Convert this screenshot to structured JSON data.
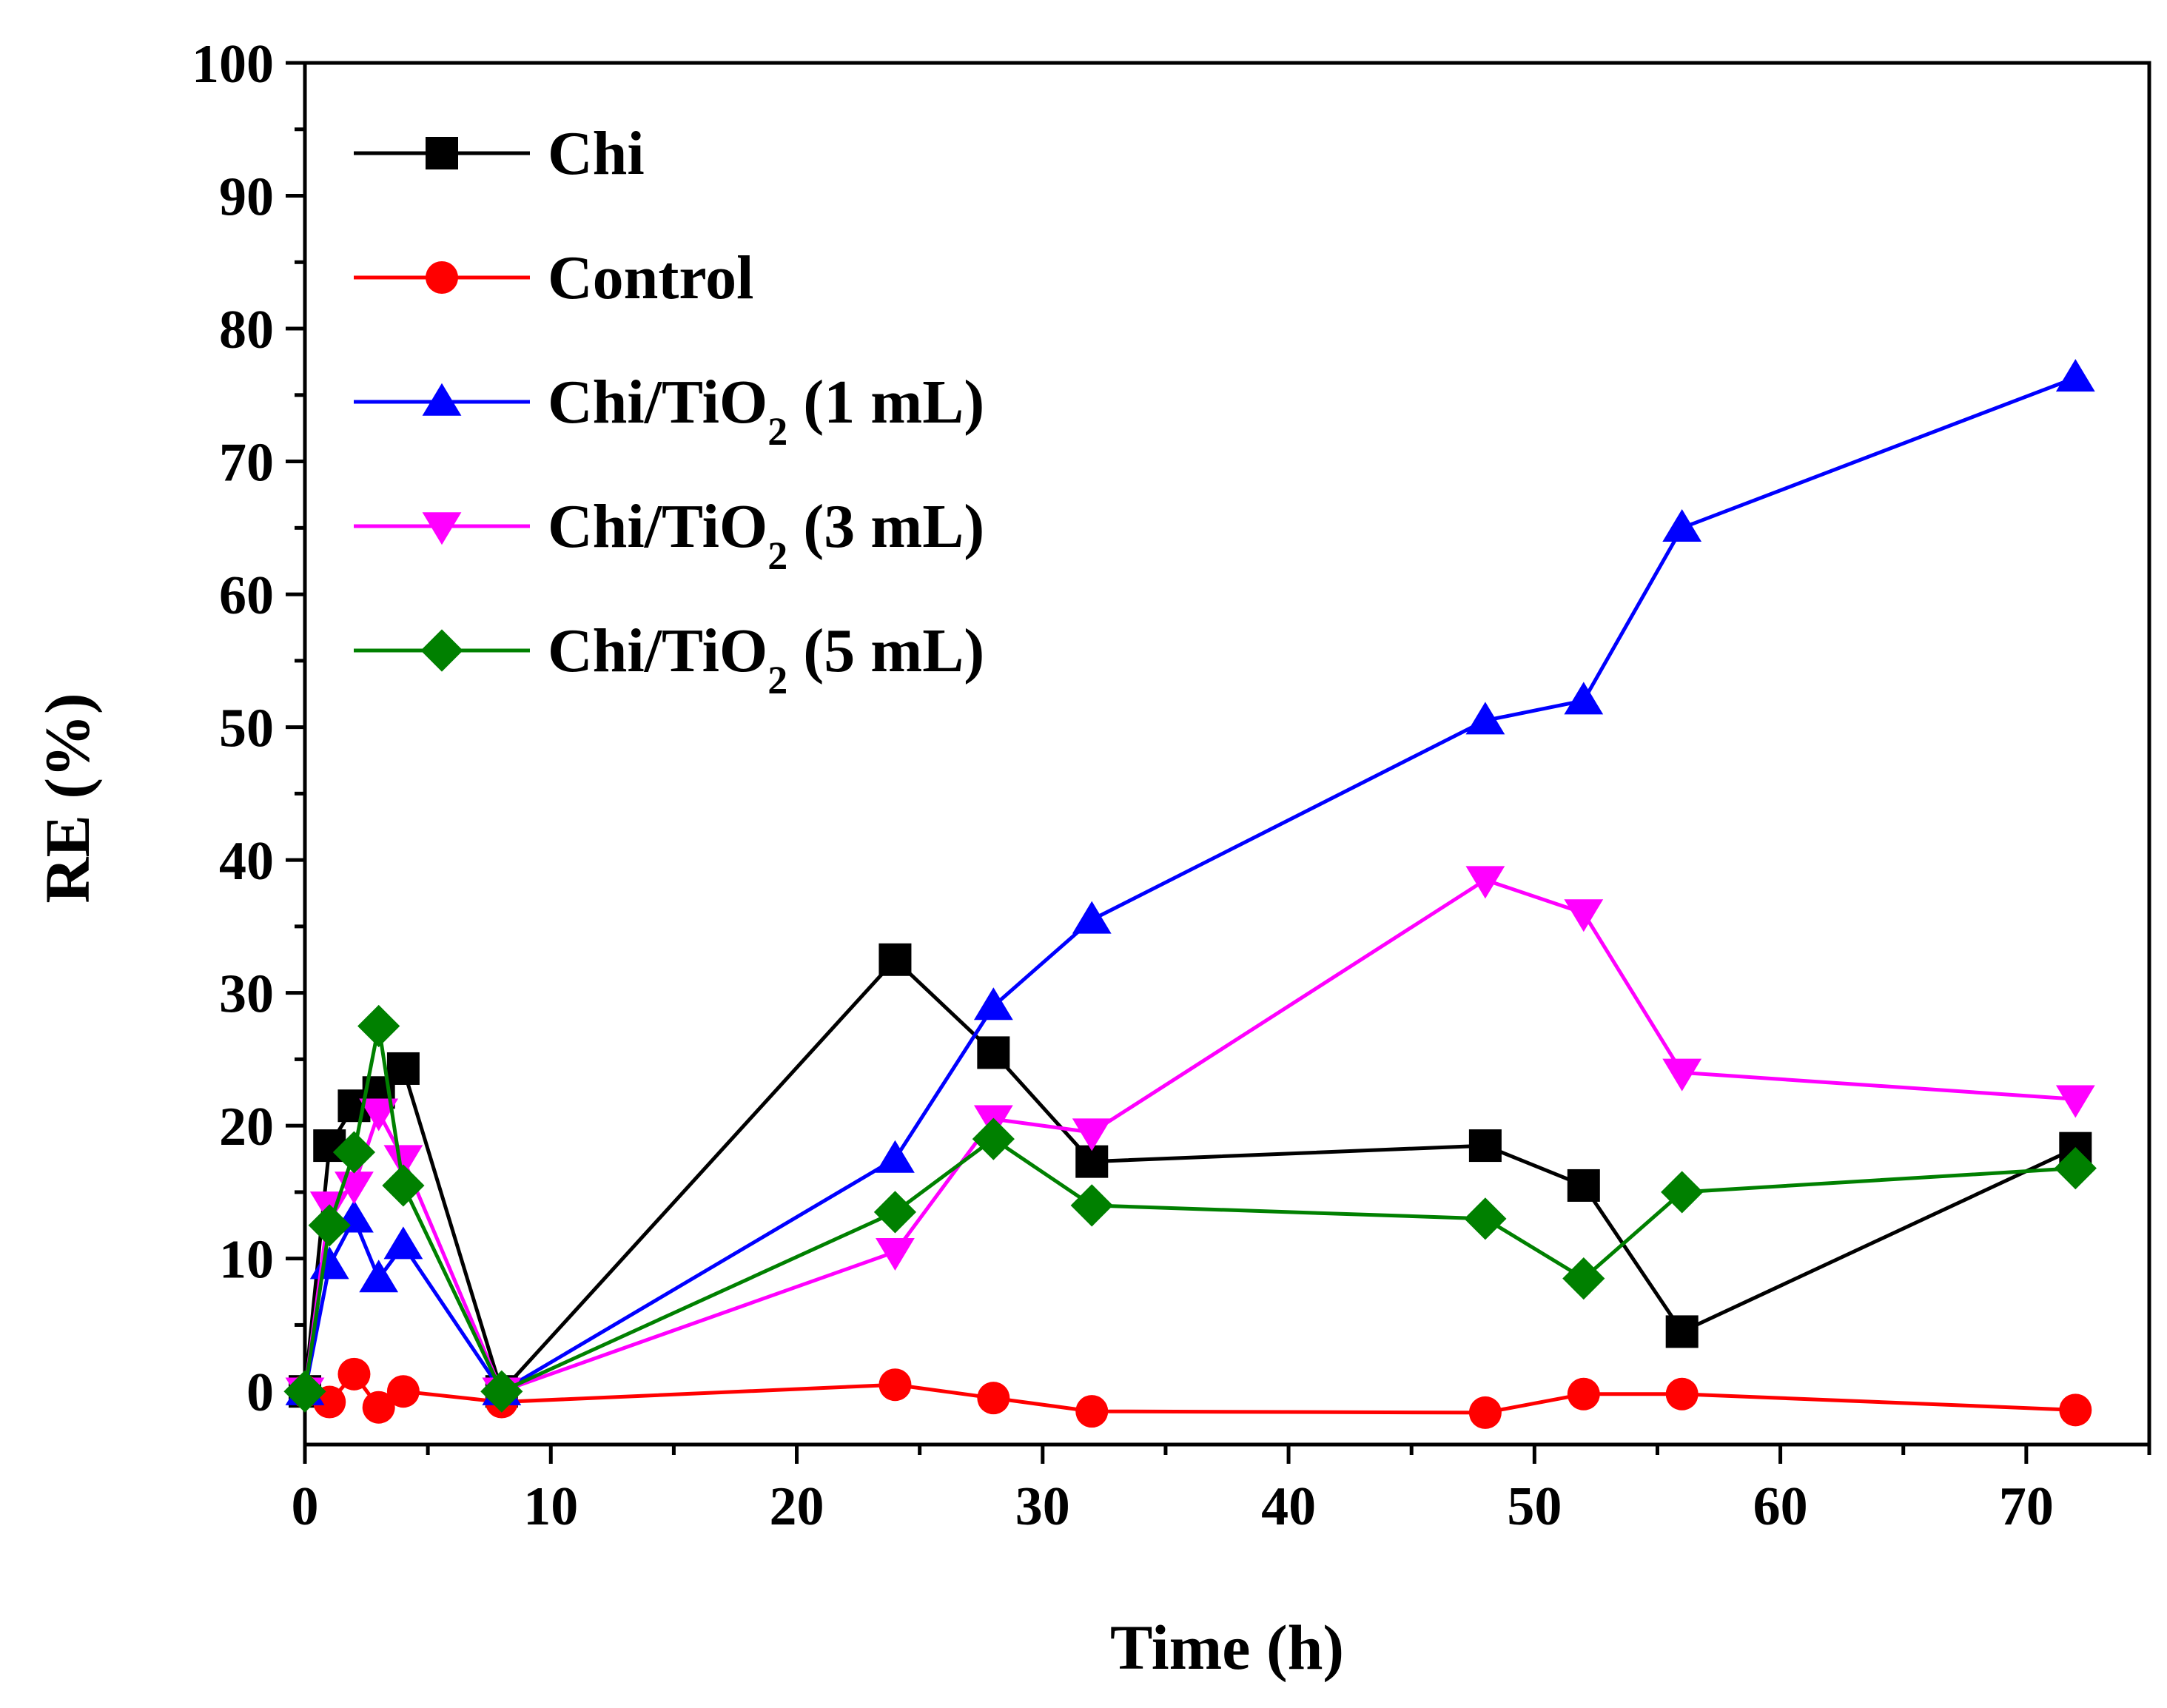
{
  "chart_data": {
    "type": "line",
    "title": "",
    "xlabel": "Time (h)",
    "ylabel": "RE (%)",
    "xlim": [
      0,
      75
    ],
    "ylim": [
      -4,
      100
    ],
    "xticks": [
      0,
      10,
      20,
      30,
      40,
      50,
      60,
      70
    ],
    "yticks": [
      0,
      10,
      20,
      30,
      40,
      50,
      60,
      70,
      80,
      90,
      100
    ],
    "legend_position": "top-left",
    "series": [
      {
        "name": "Chi",
        "legend_main": "Chi",
        "legend_sub": "",
        "legend_tail": "",
        "color": "#000000",
        "marker": "square",
        "x": [
          0,
          1,
          2,
          3,
          4,
          8,
          24,
          28,
          32,
          48,
          52,
          56,
          72
        ],
        "y": [
          0,
          18.5,
          21.5,
          22.5,
          24.3,
          0,
          32.5,
          25.5,
          17.3,
          18.5,
          15.5,
          4.5,
          18.3
        ]
      },
      {
        "name": "Control",
        "legend_main": "Control",
        "legend_sub": "",
        "legend_tail": "",
        "color": "#ff0000",
        "marker": "circle",
        "x": [
          0,
          1,
          2,
          3,
          4,
          8,
          24,
          28,
          32,
          48,
          52,
          56,
          72
        ],
        "y": [
          0,
          -0.8,
          1.3,
          -1.2,
          0,
          -0.8,
          0.5,
          -0.5,
          -1.5,
          -1.6,
          -0.2,
          -0.2,
          -1.4
        ]
      },
      {
        "name": "Chi/TiO2 (1 mL)",
        "legend_main": "Chi/TiO",
        "legend_sub": "2",
        "legend_tail": " (1 mL)",
        "color": "#0000ff",
        "marker": "triangle-up",
        "x": [
          0,
          1,
          2,
          3,
          4,
          8,
          24,
          28,
          32,
          48,
          52,
          56,
          72
        ],
        "y": [
          0,
          9.5,
          13,
          8.5,
          11,
          0,
          17.5,
          29,
          35.5,
          50.5,
          52,
          65,
          76.3
        ]
      },
      {
        "name": "Chi/TiO2 (3 mL)",
        "legend_main": "Chi/TiO",
        "legend_sub": "2",
        "legend_tail": " (3 mL)",
        "color": "#ff00ff",
        "marker": "triangle-down",
        "x": [
          0,
          1,
          2,
          3,
          4,
          8,
          24,
          28,
          32,
          48,
          52,
          56,
          72
        ],
        "y": [
          0,
          14,
          15.5,
          21,
          17.5,
          0,
          10.5,
          20.5,
          19.5,
          38.5,
          36,
          24,
          22
        ]
      },
      {
        "name": "Chi/TiO2 (5 mL)",
        "legend_main": "Chi/TiO",
        "legend_sub": "2",
        "legend_tail": " (5 mL)",
        "color": "#008000",
        "marker": "diamond",
        "x": [
          0,
          1,
          2,
          3,
          4,
          8,
          24,
          28,
          32,
          48,
          52,
          56,
          72
        ],
        "y": [
          0,
          12.5,
          18,
          27.5,
          15.5,
          0,
          13.5,
          19,
          14,
          13,
          8.5,
          15,
          16.8
        ]
      }
    ]
  }
}
